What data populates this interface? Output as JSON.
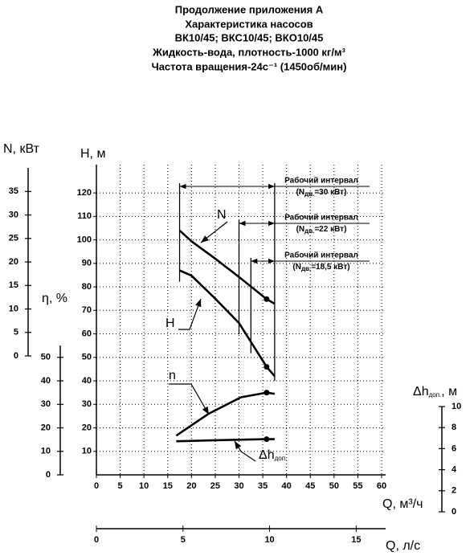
{
  "title_lines": [
    "Продолжение приложения А",
    "Характеристика насосов",
    "ВК10/45; ВКС10/45; ВКО10/45",
    "Жидкость-вода, плотность-1000 кг/м³",
    "Частота вращения-24с⁻¹ (1450об/мин)"
  ],
  "chart_data": {
    "type": "pump_curves",
    "x_label": "Q, м³/ч",
    "xlim": [
      0,
      60
    ],
    "xticks": [
      0,
      5,
      10,
      15,
      20,
      25,
      30,
      35,
      40,
      45,
      50,
      55,
      60
    ],
    "x2_label": "Q, л/с",
    "x2lim": [
      0,
      16.7
    ],
    "x2ticks": [
      0,
      5,
      10,
      15
    ],
    "y_label": "H, м",
    "ylim": [
      0,
      132
    ],
    "yticks": [
      10,
      20,
      30,
      40,
      50,
      60,
      70,
      80,
      90,
      100,
      110,
      120
    ],
    "n_axis": {
      "label": "N, кВт",
      "lim": [
        0,
        40
      ],
      "ticks": [
        0,
        5,
        10,
        15,
        20,
        25,
        30,
        35
      ]
    },
    "eta_axis": {
      "label": "η, %",
      "lim": [
        0,
        55
      ],
      "ticks": [
        0,
        10,
        20,
        30,
        40,
        50
      ]
    },
    "dh_axis": {
      "label": "Δh",
      "label_sub": "доп.",
      "label_post": ", м",
      "lim": [
        0,
        10
      ],
      "ticks": [
        0,
        2,
        4,
        6,
        8,
        10
      ]
    },
    "grid": true,
    "series": [
      {
        "name": "N",
        "axis": "n",
        "color": "#000000",
        "x": [
          17.5,
          20,
          25,
          30,
          35.8,
          37.5
        ],
        "values": [
          26.7,
          24.4,
          20.7,
          16.8,
          12.1,
          11.1
        ],
        "marker_index": 4
      },
      {
        "name": "H",
        "axis": "y",
        "color": "#000000",
        "x": [
          17.5,
          20,
          25,
          30,
          35.8,
          37.5
        ],
        "values": [
          87,
          84.8,
          75,
          64.6,
          46,
          42
        ],
        "marker_index": 4
      },
      {
        "name": "n",
        "axis": "eta",
        "color": "#000000",
        "x": [
          16.8,
          23.6,
          30.4,
          35.8,
          37.5
        ],
        "values": [
          16.7,
          26,
          33,
          35,
          34.5
        ],
        "marker_index": 3
      },
      {
        "name": "Δh",
        "name_sub": "доп.",
        "axis": "dh",
        "color": "#000000",
        "x": [
          16.8,
          25,
          35.8,
          37.5
        ],
        "values": [
          6.7,
          6.8,
          6.9,
          6.9
        ],
        "marker_index": 2
      }
    ],
    "intervals": [
      {
        "label": "Рабочий интервал",
        "note_pre": "(N",
        "note_sub": "дв.",
        "note_post": "=30 кВт)",
        "q_from": 17.5,
        "q_to": 37.5
      },
      {
        "label": "Рабочий интервал",
        "note_pre": "(N",
        "note_sub": "дв.",
        "note_post": "=22 кВт)",
        "q_from": 30,
        "q_to": 37.5
      },
      {
        "label": "Рабочий интервал",
        "note_pre": "(N",
        "note_sub": "дв.",
        "note_post": "=18,5 кВт)",
        "q_from": 32.5,
        "q_to": 37.5
      }
    ]
  }
}
